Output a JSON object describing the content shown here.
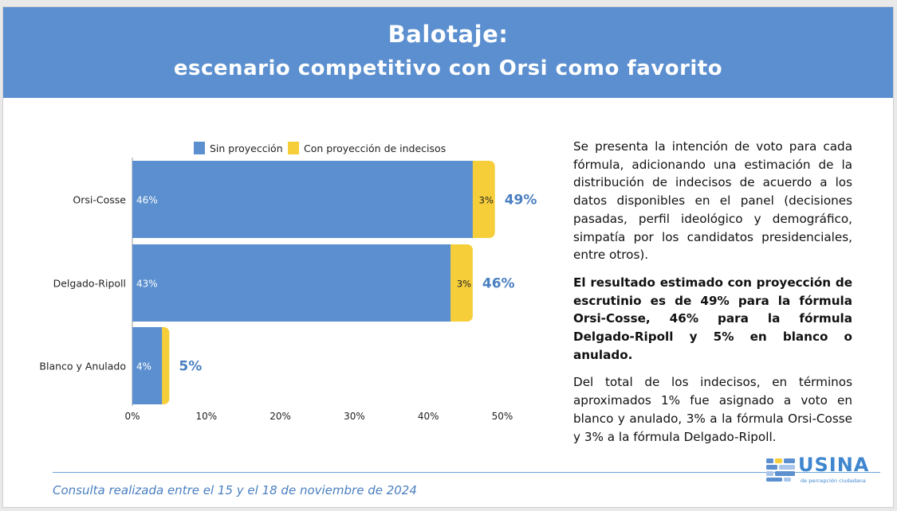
{
  "header": {
    "title_line1": "Balotaje:",
    "title_line2": "escenario competitivo con Orsi como favorito"
  },
  "chart_data": {
    "type": "bar",
    "orientation": "horizontal",
    "stacked": true,
    "categories": [
      "Orsi-Cosse",
      "Delgado-Ripoll",
      "Blanco y Anulado"
    ],
    "series": [
      {
        "name": "Sin proyección",
        "color": "#5b8fcf",
        "values": [
          46,
          43,
          4
        ],
        "labels": [
          "46%",
          "43%",
          "4%"
        ]
      },
      {
        "name": "Con proyección de indecisos",
        "color": "#f6ce3a",
        "values": [
          3,
          3,
          1
        ],
        "labels": [
          "3%",
          "3%",
          ""
        ]
      }
    ],
    "totals": [
      "49%",
      "46%",
      "5%"
    ],
    "xlim": [
      0,
      50
    ],
    "xticks": [
      "0%",
      "10%",
      "20%",
      "30%",
      "40%",
      "50%"
    ],
    "legend_position": "top"
  },
  "text": {
    "p1": "Se presenta la intención de voto para cada fórmula, adicionando una estimación de la distribución de indecisos de acuerdo a los datos disponibles en el panel (decisiones pasadas, perfil ideológico y demográfico, simpatía por los candidatos presidenciales, entre otros).",
    "p2": "El resultado estimado con proyección de escrutinio es de 49% para la fórmula Orsi-Cosse, 46% para la fórmula Delgado-Ripoll y 5% en blanco o anulado.",
    "p3": "Del total de los indecisos, en términos aproximados 1% fue asignado a voto en blanco y anulado, 3% a la fórmula Orsi-Cosse y 3% a la fórmula Delgado-Ripoll."
  },
  "footer": {
    "note": "Consulta realizada entre el 15 y el 18 de noviembre de 2024"
  },
  "logo": {
    "word": "USINA",
    "tagline": "de percepción ciudadana"
  },
  "colors": {
    "accent_blue": "#5b8fcf",
    "accent_yellow": "#f6ce3a",
    "total_label": "#4a7fc0"
  }
}
